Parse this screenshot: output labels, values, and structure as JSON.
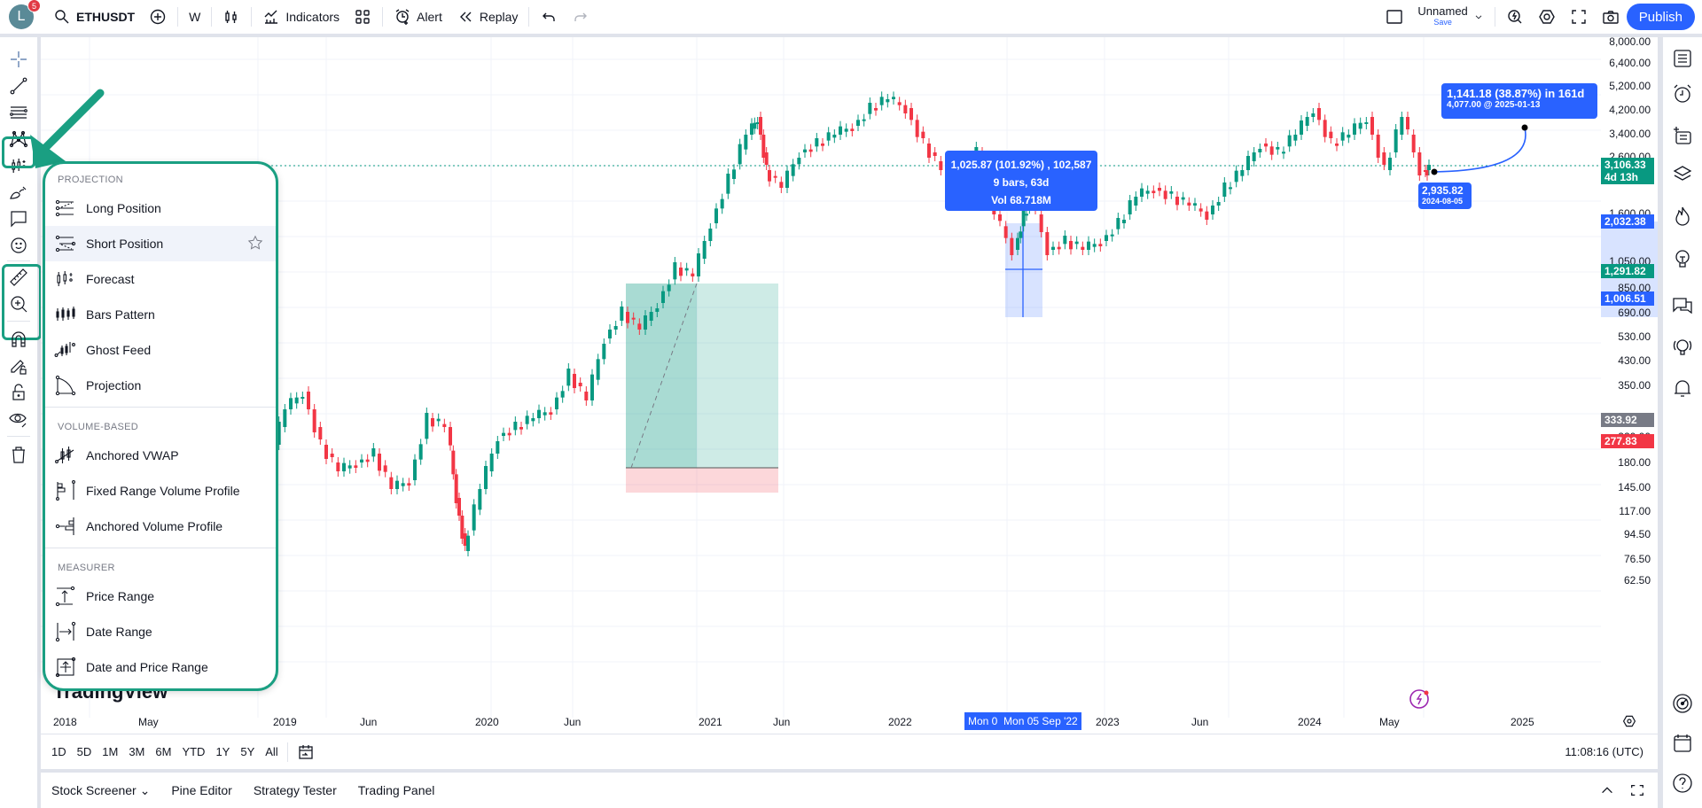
{
  "topbar": {
    "avatar_letter": "L",
    "notification_count": "5",
    "symbol": "ETHUSDT",
    "interval": "W",
    "indicators_label": "Indicators",
    "alert_label": "Alert",
    "replay_label": "Replay",
    "layout_name": "Unnamed",
    "save_label": "Save",
    "publish_label": "Publish"
  },
  "left_toolbar": {
    "tools": [
      "crosshair-icon",
      "trend-line-icon",
      "fib-retracement-icon",
      "xabcd-pattern-icon",
      "forecasting-icon",
      "brush-icon",
      "text-note-icon",
      "emoji-icon",
      "ruler-icon",
      "zoom-in-icon",
      "magnet-icon",
      "lock-drawings-icon",
      "lock-icon",
      "eye-icon",
      "trash-icon"
    ],
    "active_tool": "forecasting-icon"
  },
  "menu": {
    "sections": [
      {
        "title": "PROJECTION",
        "items": [
          "Long Position",
          "Short Position",
          "Forecast",
          "Bars Pattern",
          "Ghost Feed",
          "Projection"
        ]
      },
      {
        "title": "VOLUME-BASED",
        "items": [
          "Anchored VWAP",
          "Fixed Range Volume Profile",
          "Anchored Volume Profile"
        ]
      },
      {
        "title": "MEASURER",
        "items": [
          "Price Range",
          "Date Range",
          "Date and Price Range"
        ]
      }
    ],
    "hovered_item": "Short Position"
  },
  "chart": {
    "watermark": "TradingView",
    "price_labels": [
      "8,000.00",
      "6,400.00",
      "5,200.00",
      "4,200.00",
      "3,400.00",
      "2,600.00",
      "1,600.00",
      "1,050.00",
      "850.00",
      "690.00",
      "530.00",
      "430.00",
      "350.00",
      "220.00",
      "180.00",
      "145.00",
      "117.00",
      "94.50",
      "76.50",
      "62.50"
    ],
    "price_tags": {
      "current": {
        "value": "3,106.33",
        "countdown": "4d 13h",
        "color": "#089981"
      },
      "range_high": {
        "value": "2,032.38",
        "color": "#2962ff"
      },
      "range_mid": {
        "value": "1,291.82",
        "color": "#089981"
      },
      "range_low": {
        "value": "1,006.51",
        "color": "#2962ff"
      },
      "entry": {
        "value": "333.92",
        "color": "#787b86"
      },
      "stop": {
        "value": "277.83",
        "color": "#f23645"
      }
    },
    "time_labels": [
      "2018",
      "May",
      "2019",
      "Jun",
      "2020",
      "Jun",
      "2021",
      "Jun",
      "2022",
      "2023",
      "Jun",
      "2024",
      "May",
      "2025"
    ],
    "crosshair_time": "Mon 05 Sep '22",
    "crosshair_time_partial": "Mon 0",
    "measure_tooltip": {
      "line1": "1,025.87 (101.92%) , 102,587",
      "line2": "9 bars, 63d",
      "line3": "Vol 68.718M"
    },
    "forecast_tooltip": {
      "line1": "1,141.18 (38.87%) in 161d",
      "line2": "4,077.00 @ 2025-01-13"
    },
    "forecast_start": {
      "price": "2,935.82",
      "date": "2024-08-05"
    }
  },
  "range_bar": {
    "ranges": [
      "1D",
      "5D",
      "1M",
      "3M",
      "6M",
      "YTD",
      "1Y",
      "5Y",
      "All"
    ],
    "clock": "11:08:16 (UTC)"
  },
  "bottom_panel": {
    "tabs": [
      "Stock Screener",
      "Pine Editor",
      "Strategy Tester",
      "Trading Panel"
    ]
  },
  "colors": {
    "up": "#089981",
    "down": "#f23645",
    "accent": "#2962ff",
    "highlight": "#1a9f82"
  }
}
